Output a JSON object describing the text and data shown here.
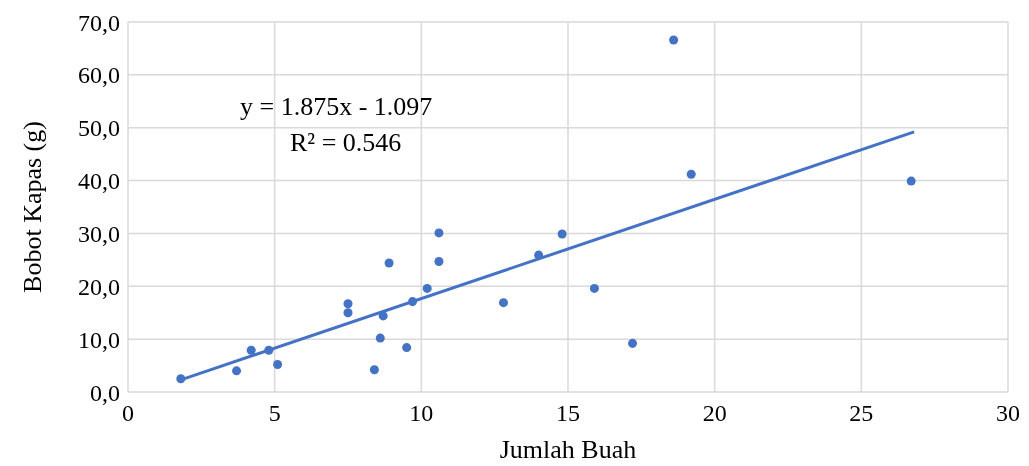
{
  "chart_data": {
    "type": "scatter",
    "xlabel": "Jumlah Buah",
    "ylabel": "Bobot Kapas (g)",
    "annotations": [
      "y = 1.875x - 1.097",
      "R² = 0.546"
    ],
    "xlim": [
      0,
      30
    ],
    "xticks": [
      0,
      5,
      10,
      15,
      20,
      25,
      30
    ],
    "ylim": [
      0,
      70
    ],
    "yticks": [
      {
        "value": 0,
        "label": "0,0"
      },
      {
        "value": 10,
        "label": "10,0"
      },
      {
        "value": 20,
        "label": "20,0"
      },
      {
        "value": 30,
        "label": "30,0"
      },
      {
        "value": 40,
        "label": "40,0"
      },
      {
        "value": 50,
        "label": "50,0"
      },
      {
        "value": 60,
        "label": "60,0"
      },
      {
        "value": 70,
        "label": "70,0"
      }
    ],
    "grid": true,
    "series": [
      {
        "color": "#4472c4",
        "marker": "circle",
        "x": [
          1.8,
          3.7,
          4.2,
          4.8,
          5.1,
          7.5,
          7.5,
          8.7,
          8.6,
          8.9,
          8.4,
          9.7,
          9.5,
          10.2,
          10.6,
          10.6,
          12.8,
          14.0,
          14.8,
          15.9,
          17.2,
          18.6,
          19.2,
          26.7
        ],
        "values": [
          2.5,
          4.0,
          7.9,
          7.9,
          5.2,
          16.7,
          15.0,
          14.4,
          10.2,
          24.4,
          4.2,
          17.1,
          8.4,
          19.6,
          30.1,
          24.7,
          16.9,
          25.9,
          29.9,
          19.6,
          9.2,
          66.6,
          41.2,
          39.9
        ]
      },
      {
        "type": "line",
        "color": "#4472c4",
        "line_style": "solid",
        "x": [
          1.8,
          26.8
        ],
        "values": [
          2.3,
          49.2
        ]
      }
    ]
  }
}
